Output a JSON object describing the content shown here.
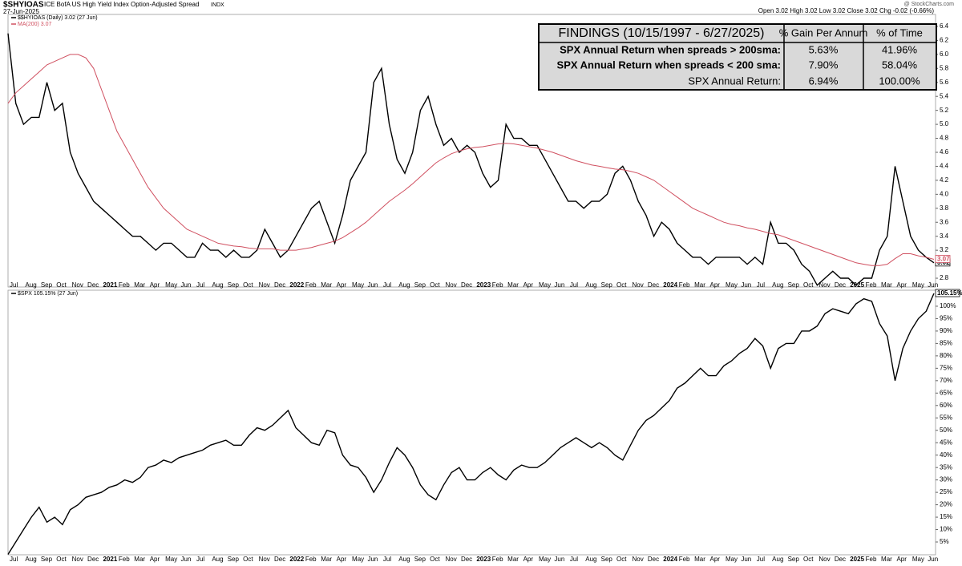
{
  "header": {
    "symbol": "$SHYIOAS",
    "description": "ICE BofA US High Yield Index Option-Adjusted Spread",
    "exchange": "INDX",
    "date": "27-Jun-2025",
    "quote": "Open 3.02  High 3.02  Low 3.02  Close 3.02  Chg -0.02 (-0.66%)",
    "source": "@ StockCharts.com"
  },
  "table": {
    "header": [
      "FINDINGS (10/15/1997 - 6/27/2025)",
      "% Gain Per Annum",
      "% of Time"
    ],
    "rows": [
      [
        "SPX Annual Return when spreads > 200sma:",
        "5.63%",
        "41.96%"
      ],
      [
        "SPX Annual Return when spreads < 200 sma:",
        "7.90%",
        "58.04%"
      ],
      [
        "SPX Annual Return:",
        "6.94%",
        "100.00%"
      ]
    ]
  },
  "chart_data": [
    {
      "type": "line",
      "legend": [
        "$$HYIOAS (Daily) 3.02 (27 Jun)",
        "MA(200) 3.07"
      ],
      "categories": [
        "Jul",
        null,
        "Aug",
        null,
        "Sep",
        null,
        "Oct",
        null,
        "Nov",
        null,
        "Dec",
        null,
        "2021",
        null,
        "Feb",
        null,
        "Mar",
        null,
        "Apr",
        null,
        "May",
        null,
        "Jun",
        null,
        "Jul",
        null,
        "Aug",
        null,
        "Sep",
        null,
        "Oct",
        null,
        "Nov",
        null,
        "Dec",
        null,
        "2022",
        null,
        "Feb",
        null,
        "Mar",
        null,
        "Apr",
        null,
        "May",
        null,
        "Jun",
        null,
        "Jul",
        null,
        "Aug",
        null,
        "Sep",
        null,
        "Oct",
        null,
        "Nov",
        null,
        "Dec",
        null,
        "2023",
        null,
        "Feb",
        null,
        "Mar",
        null,
        "Apr",
        null,
        "May",
        null,
        "Jun",
        null,
        "Jul",
        null,
        "Aug",
        null,
        "Sep",
        null,
        "Oct",
        null,
        "Nov",
        null,
        "Dec",
        null,
        "2024",
        null,
        "Feb",
        null,
        "Mar",
        null,
        "Apr",
        null,
        "May",
        null,
        "Jun",
        null,
        "Jul",
        null,
        "Aug",
        null,
        "Sep",
        null,
        "Oct",
        null,
        "Nov",
        null,
        "Dec",
        null,
        "2025",
        null,
        "Feb",
        null,
        "Mar",
        null,
        "Apr",
        null,
        "May",
        null,
        "Jun",
        null
      ],
      "series": [
        {
          "name": "$$HYIOAS",
          "color": "#000000",
          "values": [
            6.3,
            5.3,
            5.0,
            5.1,
            5.1,
            5.6,
            5.2,
            5.3,
            4.6,
            4.3,
            4.1,
            3.9,
            3.8,
            3.7,
            3.6,
            3.5,
            3.4,
            3.4,
            3.3,
            3.2,
            3.3,
            3.3,
            3.2,
            3.1,
            3.1,
            3.3,
            3.2,
            3.2,
            3.1,
            3.2,
            3.1,
            3.1,
            3.2,
            3.5,
            3.3,
            3.1,
            3.2,
            3.4,
            3.6,
            3.8,
            3.9,
            3.6,
            3.3,
            3.7,
            4.2,
            4.4,
            4.6,
            5.6,
            5.8,
            5.0,
            4.5,
            4.3,
            4.6,
            5.2,
            5.4,
            5.0,
            4.7,
            4.8,
            4.6,
            4.7,
            4.6,
            4.3,
            4.1,
            4.2,
            5.0,
            4.8,
            4.8,
            4.7,
            4.7,
            4.5,
            4.3,
            4.1,
            3.9,
            3.9,
            3.8,
            3.9,
            3.9,
            4.0,
            4.3,
            4.4,
            4.2,
            3.9,
            3.7,
            3.4,
            3.6,
            3.5,
            3.3,
            3.2,
            3.1,
            3.1,
            3.0,
            3.1,
            3.1,
            3.1,
            3.1,
            3.0,
            3.1,
            3.0,
            3.6,
            3.3,
            3.3,
            3.2,
            3.0,
            2.9,
            2.7,
            2.8,
            2.9,
            2.8,
            2.8,
            2.7,
            2.8,
            2.8,
            3.2,
            3.4,
            4.4,
            3.9,
            3.4,
            3.2,
            3.1,
            3.02
          ]
        },
        {
          "name": "MA(200)",
          "color": "#d05060",
          "values": [
            5.3,
            5.45,
            5.55,
            5.65,
            5.75,
            5.85,
            5.9,
            5.95,
            6.0,
            6.0,
            5.95,
            5.8,
            5.5,
            5.2,
            4.9,
            4.7,
            4.5,
            4.3,
            4.1,
            3.95,
            3.8,
            3.7,
            3.6,
            3.5,
            3.45,
            3.4,
            3.35,
            3.3,
            3.28,
            3.26,
            3.25,
            3.23,
            3.22,
            3.22,
            3.22,
            3.2,
            3.2,
            3.2,
            3.22,
            3.24,
            3.27,
            3.3,
            3.33,
            3.38,
            3.45,
            3.52,
            3.6,
            3.7,
            3.8,
            3.9,
            3.98,
            4.06,
            4.15,
            4.25,
            4.35,
            4.45,
            4.52,
            4.58,
            4.62,
            4.65,
            4.67,
            4.68,
            4.7,
            4.72,
            4.73,
            4.72,
            4.7,
            4.68,
            4.66,
            4.63,
            4.6,
            4.56,
            4.52,
            4.48,
            4.45,
            4.42,
            4.4,
            4.38,
            4.36,
            4.35,
            4.33,
            4.3,
            4.25,
            4.2,
            4.12,
            4.04,
            3.96,
            3.88,
            3.8,
            3.75,
            3.7,
            3.65,
            3.6,
            3.57,
            3.55,
            3.52,
            3.5,
            3.47,
            3.44,
            3.42,
            3.38,
            3.34,
            3.3,
            3.26,
            3.22,
            3.18,
            3.14,
            3.1,
            3.06,
            3.02,
            3.0,
            2.98,
            2.98,
            3.0,
            3.08,
            3.15,
            3.15,
            3.12,
            3.1,
            3.07
          ]
        }
      ],
      "ylim": [
        2.75,
        6.45
      ],
      "yticks": [
        2.8,
        {
          "value": 3,
          "label": "3.0"
        },
        3.2,
        3.4,
        3.6,
        3.8,
        {
          "value": 4,
          "label": "4.0"
        },
        4.2,
        4.4,
        4.6,
        4.8,
        {
          "value": 5,
          "label": "5.0"
        },
        5.2,
        5.4,
        5.6,
        5.8,
        {
          "value": 6,
          "label": "6.0"
        },
        6.2,
        6.4
      ],
      "grid": false
    },
    {
      "type": "line",
      "legend": [
        "$SPX 105.15% (27 Jun)"
      ],
      "categories": [
        "Jul",
        null,
        "Aug",
        null,
        "Sep",
        null,
        "Oct",
        null,
        "Nov",
        null,
        "Dec",
        null,
        "2021",
        null,
        "Feb",
        null,
        "Mar",
        null,
        "Apr",
        null,
        "May",
        null,
        "Jun",
        null,
        "Jul",
        null,
        "Aug",
        null,
        "Sep",
        null,
        "Oct",
        null,
        "Nov",
        null,
        "Dec",
        null,
        "2022",
        null,
        "Feb",
        null,
        "Mar",
        null,
        "Apr",
        null,
        "May",
        null,
        "Jun",
        null,
        "Jul",
        null,
        "Aug",
        null,
        "Sep",
        null,
        "Oct",
        null,
        "Nov",
        null,
        "Dec",
        null,
        "2023",
        null,
        "Feb",
        null,
        "Mar",
        null,
        "Apr",
        null,
        "May",
        null,
        "Jun",
        null,
        "Jul",
        null,
        "Aug",
        null,
        "Sep",
        null,
        "Oct",
        null,
        "Nov",
        null,
        "Dec",
        null,
        "2024",
        null,
        "Feb",
        null,
        "Mar",
        null,
        "Apr",
        null,
        "May",
        null,
        "Jun",
        null,
        "Jul",
        null,
        "Aug",
        null,
        "Sep",
        null,
        "Oct",
        null,
        "Nov",
        null,
        "Dec",
        null,
        "2025",
        null,
        "Feb",
        null,
        "Mar",
        null,
        "Apr",
        null,
        "May",
        null,
        "Jun",
        null
      ],
      "series": [
        {
          "name": "$SPX",
          "color": "#000000",
          "last_label": "105.15%",
          "values": [
            0,
            5,
            10,
            15,
            19,
            13,
            15,
            12,
            18,
            20,
            23,
            24,
            25,
            27,
            28,
            30,
            29,
            31,
            35,
            36,
            38,
            37,
            39,
            40,
            41,
            42,
            44,
            45,
            46,
            44,
            44,
            48,
            51,
            50,
            52,
            55,
            58,
            51,
            48,
            45,
            44,
            50,
            49,
            40,
            36,
            35,
            31,
            25,
            30,
            37,
            43,
            40,
            35,
            28,
            24,
            22,
            28,
            33,
            35,
            30,
            30,
            33,
            35,
            32,
            30,
            34,
            36,
            35,
            35,
            37,
            40,
            43,
            45,
            47,
            45,
            43,
            45,
            43,
            40,
            38,
            44,
            50,
            54,
            56,
            59,
            62,
            67,
            69,
            72,
            75,
            72,
            72,
            76,
            78,
            81,
            83,
            87,
            84,
            75,
            83,
            85,
            85,
            90,
            90,
            92,
            97,
            99,
            98,
            97,
            101,
            103,
            102,
            93,
            88,
            70,
            83,
            90,
            95,
            98,
            105.15
          ]
        }
      ],
      "ylim": [
        0,
        107
      ],
      "yticks": [
        {
          "value": 5,
          "label": "5%"
        },
        {
          "value": 10,
          "label": "10%"
        },
        {
          "value": 15,
          "label": "15%"
        },
        {
          "value": 20,
          "label": "20%"
        },
        {
          "value": 25,
          "label": "25%"
        },
        {
          "value": 30,
          "label": "30%"
        },
        {
          "value": 35,
          "label": "35%"
        },
        {
          "value": 40,
          "label": "40%"
        },
        {
          "value": 45,
          "label": "45%"
        },
        {
          "value": 50,
          "label": "50%"
        },
        {
          "value": 55,
          "label": "55%"
        },
        {
          "value": 60,
          "label": "60%"
        },
        {
          "value": 65,
          "label": "65%"
        },
        {
          "value": 70,
          "label": "70%"
        },
        {
          "value": 75,
          "label": "75%"
        },
        {
          "value": 80,
          "label": "80%"
        },
        {
          "value": 85,
          "label": "85%"
        },
        {
          "value": 90,
          "label": "90%"
        },
        {
          "value": 95,
          "label": "95%"
        },
        {
          "value": 100,
          "label": "100%"
        }
      ],
      "grid": false
    }
  ]
}
